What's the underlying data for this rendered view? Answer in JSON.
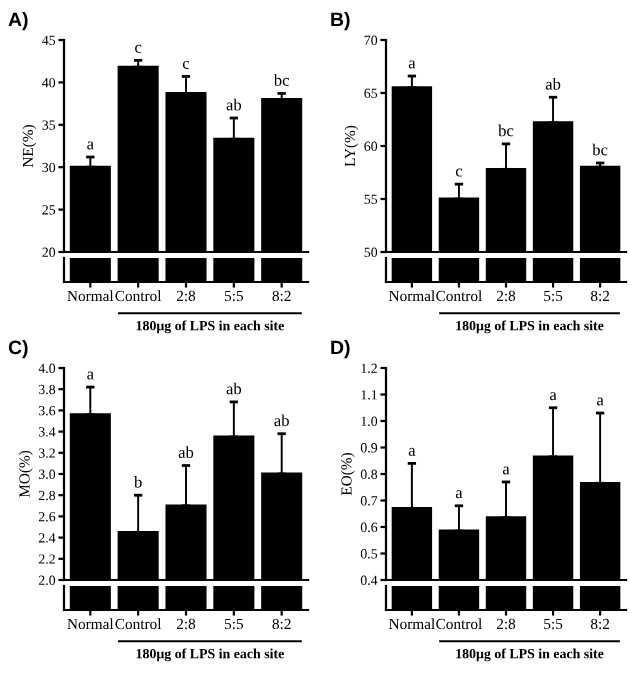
{
  "chart_data": [
    {
      "type": "bar",
      "title": "A)",
      "ylabel": "NE(%)",
      "xlabel": "180μg of LPS in each site",
      "categories": [
        "Normal",
        "Control",
        "2:8",
        "5:5",
        "8:2"
      ],
      "series": [
        {
          "color": "#000000",
          "values": [
            30,
            41.8,
            38.7,
            33.3,
            38
          ],
          "errors": [
            [
              30,
              31.2
            ],
            [
              41.8,
              42.6
            ],
            [
              38.7,
              40.7
            ],
            [
              33.3,
              35.8
            ],
            [
              38,
              38.7
            ]
          ]
        }
      ],
      "ylim": [
        20,
        45
      ],
      "yticks": [
        20,
        25,
        30,
        35,
        40,
        45
      ],
      "annotations": [
        "a",
        "c",
        "c",
        "ab",
        "bc"
      ]
    },
    {
      "type": "bar",
      "title": "B)",
      "ylabel": "LY(%)",
      "xlabel": "180μg of LPS in each site",
      "categories": [
        "Normal",
        "Control",
        "2:8",
        "5:5",
        "8:2"
      ],
      "series": [
        {
          "color": "#000000",
          "values": [
            65.5,
            55,
            57.8,
            62.2,
            58
          ],
          "errors": [
            [
              65.5,
              66.6
            ],
            [
              55,
              56.4
            ],
            [
              57.8,
              60.2
            ],
            [
              62.2,
              64.6
            ],
            [
              58,
              58.4
            ]
          ]
        }
      ],
      "ylim": [
        50,
        70
      ],
      "yticks": [
        50,
        55,
        60,
        65,
        70
      ],
      "annotations": [
        "a",
        "c",
        "bc",
        "ab",
        "bc"
      ]
    },
    {
      "type": "bar",
      "title": "C)",
      "ylabel": "MO(%)",
      "xlabel": "180μg of LPS in each site",
      "categories": [
        "Normal",
        "Control",
        "2:8",
        "5:5",
        "8:2"
      ],
      "series": [
        {
          "color": "#000000",
          "values": [
            3.56,
            2.45,
            2.7,
            3.35,
            3.0
          ],
          "errors": [
            [
              3.56,
              3.82
            ],
            [
              2.45,
              2.8
            ],
            [
              2.7,
              3.08
            ],
            [
              3.35,
              3.68
            ],
            [
              3.0,
              3.38
            ]
          ]
        }
      ],
      "ylim": [
        2.0,
        4.0
      ],
      "yticks": [
        {
          "value": 2.0,
          "label": "2.0"
        },
        {
          "value": 2.2,
          "label": "2.2"
        },
        {
          "value": 2.4,
          "label": "2.4"
        },
        {
          "value": 2.6,
          "label": "2.6"
        },
        {
          "value": 2.8,
          "label": "2.8"
        },
        {
          "value": 3.0,
          "label": "3.0"
        },
        {
          "value": 3.2,
          "label": "3.2"
        },
        {
          "value": 3.4,
          "label": "3.4"
        },
        {
          "value": 3.6,
          "label": "3.6"
        },
        {
          "value": 3.8,
          "label": "3.8"
        },
        {
          "value": 4.0,
          "label": "4.0"
        }
      ],
      "annotations": [
        "a",
        "b",
        "ab",
        "ab",
        "ab"
      ]
    },
    {
      "type": "bar",
      "title": "D)",
      "ylabel": "EO(%)",
      "xlabel": "180μg of LPS in each site",
      "categories": [
        "Normal",
        "Control",
        "2:8",
        "5:5",
        "8:2"
      ],
      "series": [
        {
          "color": "#000000",
          "values": [
            0.67,
            0.585,
            0.635,
            0.865,
            0.765
          ],
          "errors": [
            [
              0.67,
              0.84
            ],
            [
              0.585,
              0.68
            ],
            [
              0.635,
              0.77
            ],
            [
              0.865,
              1.05
            ],
            [
              0.765,
              1.03
            ]
          ]
        }
      ],
      "ylim": [
        0.4,
        1.2
      ],
      "yticks": [
        {
          "value": 0.4,
          "label": "0.4"
        },
        {
          "value": 0.5,
          "label": "0.5"
        },
        {
          "value": 0.6,
          "label": "0.6"
        },
        {
          "value": 0.7,
          "label": "0.7"
        },
        {
          "value": 0.8,
          "label": "0.8"
        },
        {
          "value": 0.9,
          "label": "0.9"
        },
        {
          "value": 1.0,
          "label": "1.0"
        },
        {
          "value": 1.1,
          "label": "1.1"
        },
        {
          "value": 1.2,
          "label": "1.2"
        }
      ],
      "annotations": [
        "a",
        "a",
        "a",
        "a",
        "a"
      ]
    }
  ]
}
